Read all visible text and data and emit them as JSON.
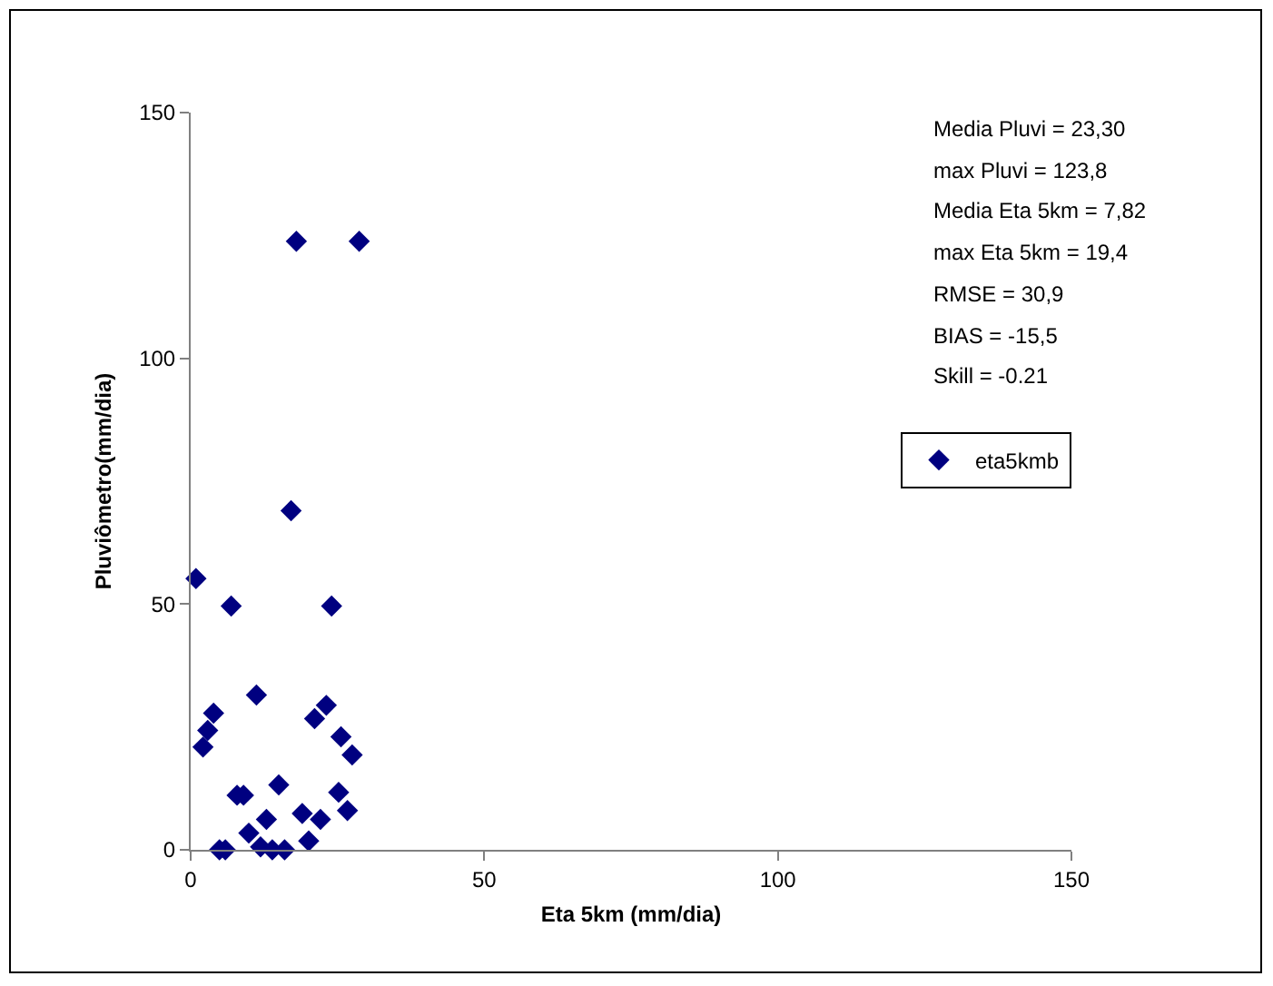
{
  "chart_data": {
    "type": "scatter",
    "xlabel": "Eta 5km (mm/dia)",
    "ylabel": "Pluviômetro(mm/dia)",
    "x": [
      18.0,
      28.7,
      17.1,
      0.9,
      6.9,
      24.0,
      11.2,
      3.9,
      23.1,
      21.1,
      2.9,
      2.1,
      25.6,
      27.5,
      15.0,
      7.9,
      9.0,
      25.2,
      26.7,
      19.0,
      12.9,
      22.1,
      9.9,
      20.1,
      11.9,
      4.9,
      5.9,
      13.9,
      16.0
    ],
    "series": [
      {
        "name": "eta5kmb",
        "color": "#000080",
        "values": [
          123.8,
          123.8,
          69.0,
          55.2,
          49.6,
          49.6,
          31.5,
          27.8,
          29.4,
          26.7,
          24.3,
          20.9,
          23.0,
          19.3,
          13.2,
          11.1,
          11.1,
          11.7,
          8.0,
          7.4,
          6.2,
          6.2,
          3.4,
          1.8,
          0.6,
          0,
          0,
          0,
          0
        ]
      }
    ],
    "xlim": [
      0,
      150
    ],
    "xticks": [
      0,
      50,
      100,
      150
    ],
    "ylim": [
      0,
      150
    ],
    "yticks": [
      0,
      50,
      100,
      150
    ],
    "grid": false,
    "legend": "right",
    "marker": "diamond",
    "annotations": [
      "Media Pluvi = 23,30",
      "max Pluvi = 123,8",
      "Media Eta 5km = 7,82",
      "max Eta 5km = 19,4",
      "RMSE = 30,9",
      "BIAS = -15,5",
      "Skill = -0.21"
    ]
  }
}
